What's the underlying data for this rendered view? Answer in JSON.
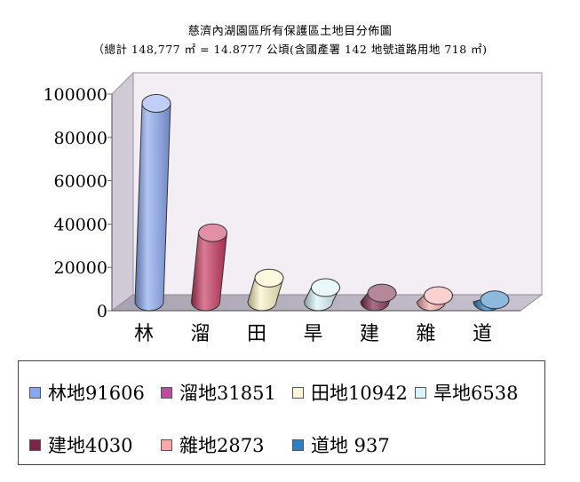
{
  "chart_data": {
    "type": "bar",
    "title": "慈濟內湖園區所有保護區土地目分佈圖",
    "subtitle": "（總計 148,777 ㎡ = 14.8777 公頃(含國產署 142 地號道路用地 718 ㎡)",
    "categories": [
      "林",
      "溜",
      "田",
      "旱",
      "建",
      "雜",
      "道"
    ],
    "values": [
      91606,
      31851,
      10942,
      6538,
      4030,
      2873,
      937
    ],
    "ylim": [
      0,
      100000
    ],
    "yticks": [
      "100000",
      "80000",
      "60000",
      "40000",
      "20000",
      "0"
    ],
    "colors": [
      "#8aa8f0",
      "#c8365e",
      "#fbf4c4",
      "#d7f3f8",
      "#7a2545",
      "#f6aaaa",
      "#2f7fc0"
    ],
    "legend_position": "bottom",
    "grid": false,
    "style": "3d-cylinder",
    "legend": [
      {
        "label": "林地91606",
        "color": "#8aa8f0"
      },
      {
        "label": "溜地31851",
        "color": "#c04aa0"
      },
      {
        "label": "田地10942",
        "color": "#fbf7d6"
      },
      {
        "label": "旱地6538",
        "color": "#d8f3fa"
      },
      {
        "label": "建地4030",
        "color": "#7a2545"
      },
      {
        "label": "雜地2873",
        "color": "#f7a8a8"
      },
      {
        "label": "道地 937",
        "color": "#2e7fc4"
      }
    ]
  }
}
